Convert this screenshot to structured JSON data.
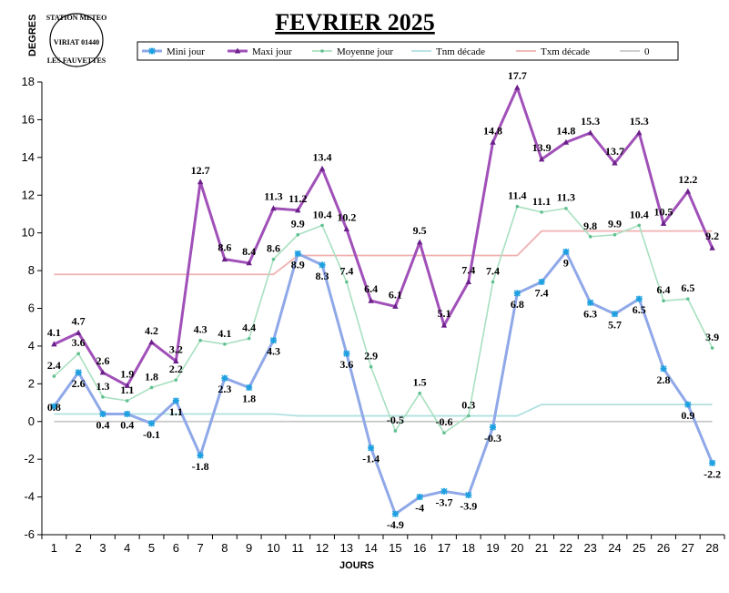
{
  "chart_data": {
    "type": "line",
    "title": "FEVRIER 2025",
    "xlabel": "JOURS",
    "ylabel": "DEGRES",
    "x": [
      1,
      2,
      3,
      4,
      5,
      6,
      7,
      8,
      9,
      10,
      11,
      12,
      13,
      14,
      15,
      16,
      17,
      18,
      19,
      20,
      21,
      22,
      23,
      24,
      25,
      26,
      27,
      28
    ],
    "ylim": [
      -6,
      18
    ],
    "yticks": [
      -6,
      -4,
      -2,
      0,
      2,
      4,
      6,
      8,
      10,
      12,
      14,
      16,
      18
    ],
    "grid": false,
    "legend_position": "top",
    "series": [
      {
        "name": "Mini jour",
        "color": "#8fa8e8",
        "marker_color": "#1fa0e0",
        "marker": "asterisk",
        "values": [
          0.8,
          2.6,
          0.4,
          0.4,
          -0.1,
          1.1,
          -1.8,
          2.3,
          1.8,
          4.3,
          8.9,
          8.3,
          3.6,
          -1.4,
          -4.9,
          -4,
          -3.7,
          -3.9,
          -0.3,
          6.8,
          7.4,
          9,
          6.3,
          5.7,
          6.5,
          2.8,
          0.9,
          -2.2
        ],
        "labels": [
          "0.8",
          "2.6",
          "0.4",
          "0.4",
          "-0.1",
          "1.1",
          "-1.8",
          "2.3",
          "1.8",
          "4.3",
          "8.9",
          "8.3",
          "3.6",
          "-1.4",
          "-4.9",
          "-4",
          "-3.7",
          "-3.9",
          "-0.3",
          "6.8",
          "7.4",
          "9",
          "6.3",
          "5.7",
          "6.5",
          "2.8",
          "0.9",
          "-2.2"
        ]
      },
      {
        "name": "Maxi jour",
        "color": "#a050b8",
        "marker_color": "#6a1f8a",
        "marker": "triangle",
        "values": [
          4.1,
          4.7,
          2.6,
          1.9,
          4.2,
          3.2,
          12.7,
          8.6,
          8.4,
          11.3,
          11.2,
          13.4,
          10.2,
          6.4,
          6.1,
          9.5,
          5.1,
          7.4,
          14.8,
          17.7,
          13.9,
          14.8,
          15.3,
          13.7,
          15.3,
          10.5,
          12.2,
          9.2
        ],
        "labels": [
          "4.1",
          "4.7",
          "2.6",
          "1.9",
          "4.2",
          "3.2",
          "12.7",
          "8.6",
          "8.4",
          "11.3",
          "11.2",
          "13.4",
          "10.2",
          "6.4",
          "6.1",
          "9.5",
          "5.1",
          "7.4",
          "14.8",
          "17.7",
          "13.9",
          "14.8",
          "15.3",
          "13.7",
          "15.3",
          "10.5",
          "12.2",
          "9.2"
        ]
      },
      {
        "name": "Moyenne jour",
        "color": "#a8e0c0",
        "marker_color": "#60c090",
        "marker": "dot",
        "values": [
          2.4,
          3.6,
          1.3,
          1.1,
          1.8,
          2.2,
          4.3,
          4.1,
          4.4,
          8.6,
          9.9,
          10.4,
          7.4,
          2.9,
          -0.5,
          1.5,
          -0.6,
          0.3,
          7.4,
          11.4,
          11.1,
          11.3,
          9.8,
          9.9,
          10.4,
          6.4,
          6.5,
          3.9
        ],
        "labels": [
          "2.4",
          "3.6",
          "1.3",
          "1.1",
          "1.8",
          "2.2",
          "4.3",
          "4.1",
          "4.4",
          "8.6",
          "9.9",
          "10.4",
          "7.4",
          "2.9",
          "-0.5",
          "1.5",
          "-0.6",
          "0.3",
          "7.4",
          "11.4",
          "11.1",
          "11.3",
          "9.8",
          "9.9",
          "10.4",
          "6.4",
          "6.5",
          "3.9"
        ]
      },
      {
        "name": "Tnm décade",
        "color": "#b0e0e0",
        "values": [
          0.4,
          0.4,
          0.4,
          0.4,
          0.4,
          0.4,
          0.4,
          0.4,
          0.4,
          0.4,
          0.3,
          0.3,
          0.3,
          0.3,
          0.3,
          0.3,
          0.3,
          0.3,
          0.3,
          0.3,
          0.9,
          0.9,
          0.9,
          0.9,
          0.9,
          0.9,
          0.9,
          0.9
        ]
      },
      {
        "name": "Txm décade",
        "color": "#f0b0b0",
        "values": [
          7.8,
          7.8,
          7.8,
          7.8,
          7.8,
          7.8,
          7.8,
          7.8,
          7.8,
          7.8,
          8.8,
          8.8,
          8.8,
          8.8,
          8.8,
          8.8,
          8.8,
          8.8,
          8.8,
          8.8,
          10.1,
          10.1,
          10.1,
          10.1,
          10.1,
          10.1,
          10.1,
          10.1
        ]
      },
      {
        "name": "0",
        "color": "#c8c8c8",
        "values": [
          0,
          0,
          0,
          0,
          0,
          0,
          0,
          0,
          0,
          0,
          0,
          0,
          0,
          0,
          0,
          0,
          0,
          0,
          0,
          0,
          0,
          0,
          0,
          0,
          0,
          0,
          0,
          0
        ]
      }
    ]
  },
  "stamp": {
    "line1": "STATION METEO",
    "line2": "VIRIAT 01440",
    "line3": "LES FAUVETTES"
  }
}
